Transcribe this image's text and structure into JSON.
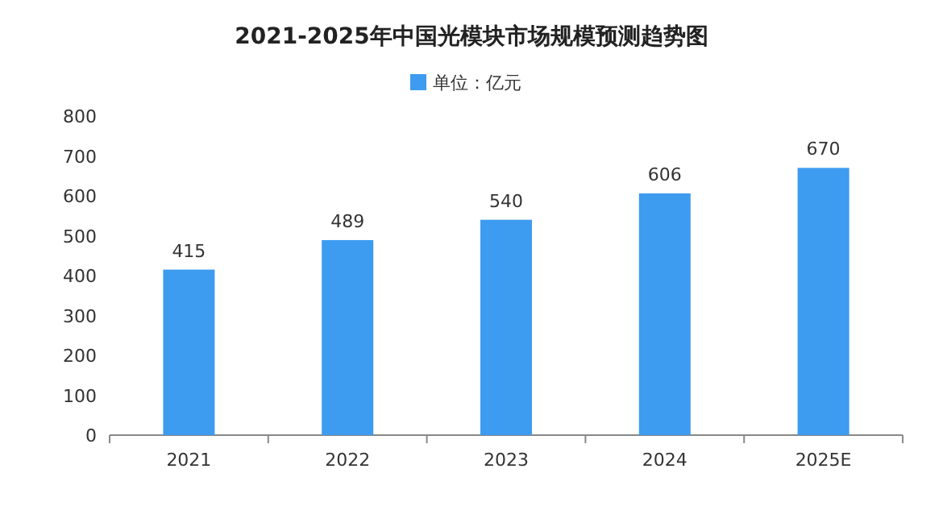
{
  "chart_data": {
    "type": "bar",
    "title": "2021-2025年中国光模块市场规模预测趋势图",
    "categories": [
      "2021",
      "2022",
      "2023",
      "2024",
      "2025E"
    ],
    "series": [
      {
        "name": "单位：亿元",
        "color": "#3d9bf0",
        "values": [
          415,
          489,
          540,
          606,
          670
        ]
      }
    ],
    "ylim": [
      0,
      800
    ],
    "yticks": [
      0,
      100,
      200,
      300,
      400,
      500,
      600,
      700,
      800
    ],
    "data_labels": true,
    "legend": "top"
  }
}
